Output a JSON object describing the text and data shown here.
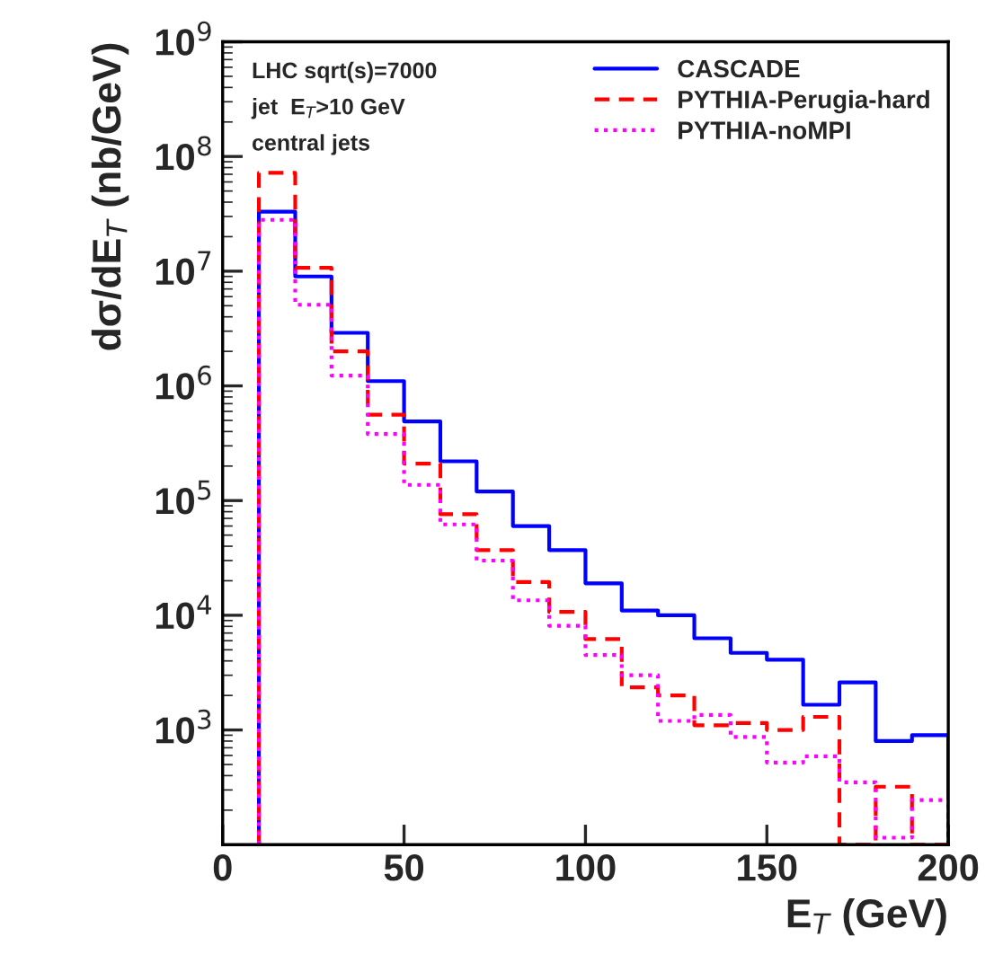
{
  "chart_data": {
    "type": "histogram",
    "xlabel": "E$_{T}$ (GeV)",
    "ylabel": "dσ/dE$_{T}$ (nb/GeV)",
    "annotations": [
      "LHC sqrt(s)=7000",
      "jet  E$_{T}$>10 GeV",
      "central jets"
    ],
    "bins": [
      10,
      20,
      30,
      40,
      50,
      60,
      70,
      80,
      90,
      100,
      110,
      120,
      130,
      140,
      150,
      160,
      170,
      180,
      190,
      200
    ],
    "series": [
      {
        "name": "CASCADE",
        "color": "#0000ff",
        "line_style": "solid",
        "values": [
          33000000,
          9000000,
          2900000,
          1100000,
          490000,
          220000,
          120000,
          60000,
          37000,
          19000,
          11000,
          10000,
          6300,
          4700,
          4100,
          1660,
          2600,
          800,
          900
        ]
      },
      {
        "name": "PYTHIA-Perugia-hard",
        "color": "#ff0000",
        "line_style": "dashed",
        "values": [
          72000000,
          10700000,
          2000000,
          560000,
          210000,
          76000,
          37000,
          19500,
          10700,
          6200,
          2350,
          2000,
          1100,
          1150,
          1000,
          1300,
          100,
          320,
          100
        ]
      },
      {
        "name": "PYTHIA-noMPI",
        "color": "#ff00ff",
        "line_style": "dotted",
        "values": [
          28000000,
          5100000,
          1230000,
          380000,
          137000,
          62000,
          30000,
          13500,
          8100,
          4500,
          3000,
          1200,
          1350,
          870,
          520,
          590,
          350,
          115,
          245
        ]
      }
    ],
    "log": true,
    "xlim": [
      0,
      200
    ],
    "xticks": [
      0,
      50,
      100,
      150,
      200
    ],
    "ylim": [
      100,
      1000000000
    ],
    "yticks": [
      {
        "value": 1000,
        "label": "10$^{3}$"
      },
      {
        "value": 10000,
        "label": "10$^{4}$"
      },
      {
        "value": 100000,
        "label": "10$^{5}$"
      },
      {
        "value": 1000000,
        "label": "10$^{6}$"
      },
      {
        "value": 10000000,
        "label": "10$^{7}$"
      },
      {
        "value": 100000000,
        "label": "10$^{8}$"
      },
      {
        "value": 1000000000,
        "label": "10$^{9}$"
      }
    ],
    "legend": "top right",
    "grid": false
  }
}
